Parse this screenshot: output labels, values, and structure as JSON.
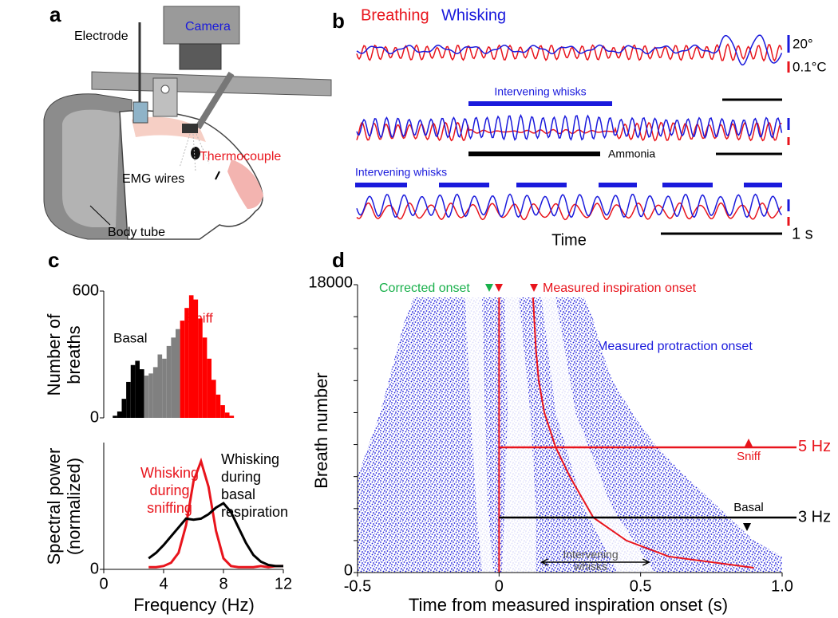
{
  "panel_labels": [
    "a",
    "b",
    "c",
    "d"
  ],
  "illustration": {
    "labels": {
      "electrode": "Electrode",
      "camera": "Camera",
      "thermocouple": "Thermocouple",
      "emg": "EMG wires",
      "tube": "Body tube"
    }
  },
  "traces": {
    "legend": [
      {
        "name": "Breathing",
        "color": "#e8141c"
      },
      {
        "name": "Whisking",
        "color": "#1a1adc"
      }
    ],
    "scale_labels": [
      "20°",
      "0.1°C"
    ],
    "annotations": [
      "Intervening whisks",
      "Ammonia",
      "Intervening whisks"
    ],
    "xlabel": "Time",
    "time_scale": "1 s"
  },
  "chart_data": [
    {
      "type": "histogram",
      "ylabel": "Number of breaths",
      "bins": [
        0.6,
        0.9,
        1.2,
        1.5,
        1.8,
        2.1,
        2.4,
        2.7,
        3,
        3.3,
        3.6,
        3.9,
        4.2,
        4.5,
        4.8,
        5.1,
        5.4,
        5.7,
        6,
        6.3,
        6.6,
        6.9,
        7.2,
        7.5,
        7.8,
        8.1,
        8.4,
        8.7
      ],
      "counts": [
        10,
        30,
        90,
        170,
        250,
        270,
        230,
        200,
        210,
        240,
        300,
        280,
        340,
        380,
        420,
        460,
        520,
        580,
        560,
        470,
        380,
        280,
        180,
        110,
        60,
        25,
        10
      ],
      "bar_colors": [
        "#000000",
        "#000000",
        "#000000",
        "#000000",
        "#000000",
        "#000000",
        "#000000",
        "#808080",
        "#808080",
        "#808080",
        "#808080",
        "#808080",
        "#808080",
        "#808080",
        "#808080",
        "#ff0000",
        "#ff0000",
        "#ff0000",
        "#ff0000",
        "#ff0000",
        "#ff0000",
        "#ff0000",
        "#ff0000",
        "#ff0000",
        "#ff0000",
        "#ff0000",
        "#ff0000"
      ],
      "xlim": [
        0,
        12
      ],
      "ylim": [
        0,
        600
      ],
      "yticks": [
        0,
        600
      ],
      "annotations": [
        {
          "text": "Basal",
          "color": "#000000"
        },
        {
          "text": "Sniff",
          "color": "#e8141c"
        }
      ]
    },
    {
      "type": "line",
      "xlabel": "Frequency (Hz)",
      "ylabel": "Spectral power (normalized)",
      "x": [
        3,
        3.5,
        4,
        4.5,
        5,
        5.5,
        6,
        6.5,
        7,
        7.5,
        8,
        8.5,
        9,
        9.5,
        10,
        10.5,
        11,
        11.5,
        12
      ],
      "series": [
        {
          "name": "Whisking during sniffing",
          "color": "#e8141c",
          "values": [
            0.02,
            0.02,
            0.03,
            0.06,
            0.15,
            0.4,
            0.8,
            0.98,
            0.75,
            0.35,
            0.1,
            0.03,
            0.02,
            0.02,
            0.02,
            0.03,
            0.02,
            0.03,
            0.03
          ]
        },
        {
          "name": "Whisking during basal respiration",
          "color": "#000000",
          "values": [
            0.1,
            0.15,
            0.22,
            0.3,
            0.38,
            0.46,
            0.45,
            0.46,
            0.5,
            0.56,
            0.6,
            0.52,
            0.38,
            0.24,
            0.13,
            0.07,
            0.04,
            0.03,
            0.03
          ]
        }
      ],
      "xlim": [
        0,
        12
      ],
      "xticks": [
        0,
        4,
        8,
        12
      ],
      "ylim": [
        0,
        1.15
      ],
      "yticks": [
        0
      ]
    },
    {
      "type": "raster",
      "xlabel": "Time from measured inspiration onset (s)",
      "ylabel": "Breath number",
      "xlim": [
        -0.5,
        1
      ],
      "xticks": [
        -0.5,
        0,
        0.5,
        {
          "value": 1,
          "label": "1.0"
        }
      ],
      "ylim": [
        0,
        18000
      ],
      "yticks": [
        0,
        18000
      ],
      "yminor_ticks": [
        2000,
        4000,
        6000,
        8000,
        10000,
        12000,
        14000,
        16000
      ],
      "cloud": {
        "name": "Measured protraction onset",
        "color": "#1a1adc",
        "y": [
          0,
          1000,
          2000,
          4000,
          6000,
          8000,
          10000,
          12000,
          14000,
          16000,
          17200
        ],
        "x_left": [
          -0.5,
          -0.5,
          -0.5,
          -0.5,
          -0.5,
          -0.46,
          -0.42,
          -0.39,
          -0.36,
          -0.33,
          -0.3
        ],
        "x_right": [
          1,
          1,
          0.9,
          0.78,
          0.66,
          0.55,
          0.47,
          0.4,
          0.36,
          0.33,
          0.3
        ]
      },
      "gaps": [
        {
          "y": [
            0,
            4000,
            10000,
            17200
          ],
          "x_left": [
            -0.06,
            -0.08,
            -0.1,
            -0.12
          ],
          "x_right": [
            -0.02,
            -0.04,
            -0.05,
            -0.06
          ]
        },
        {
          "y": [
            0,
            4000,
            10000,
            17200
          ],
          "x_left": [
            0.01,
            0.02,
            0.03,
            0.02
          ],
          "x_right": [
            0.13,
            0.13,
            0.11,
            0.07
          ]
        },
        {
          "y": [
            0,
            4000,
            10000,
            17200
          ],
          "x_left": [
            0.42,
            0.3,
            0.2,
            0.15
          ],
          "x_right": [
            0.55,
            0.4,
            0.27,
            0.2
          ]
        }
      ],
      "inspiration_curves": {
        "color": "#e8141c",
        "lines": [
          {
            "x": [
              0,
              0
            ],
            "y": [
              0,
              17200
            ]
          },
          {
            "x": [
              0.12,
              0.13,
              0.14,
              0.16,
              0.2,
              0.25,
              0.333,
              0.45,
              0.6,
              0.9
            ],
            "y": [
              17200,
              14000,
              12000,
              10000,
              7830,
              6000,
              3440,
              2000,
              1000,
              300
            ]
          }
        ]
      },
      "rates": [
        {
          "y": 7830,
          "x": [
            0,
            1
          ],
          "color": "#e8141c",
          "label": "5 Hz",
          "tag": "Sniff"
        },
        {
          "y": 3440,
          "x": [
            0,
            1
          ],
          "color": "#000000",
          "label": "3 Hz",
          "tag": "Basal"
        }
      ],
      "annotations": [
        {
          "text": "Corrected onset",
          "color": "#19b04b"
        },
        {
          "text": "Measured inspiration onset",
          "color": "#e8141c"
        }
      ],
      "intervening_label": "Intervening whisks"
    }
  ]
}
